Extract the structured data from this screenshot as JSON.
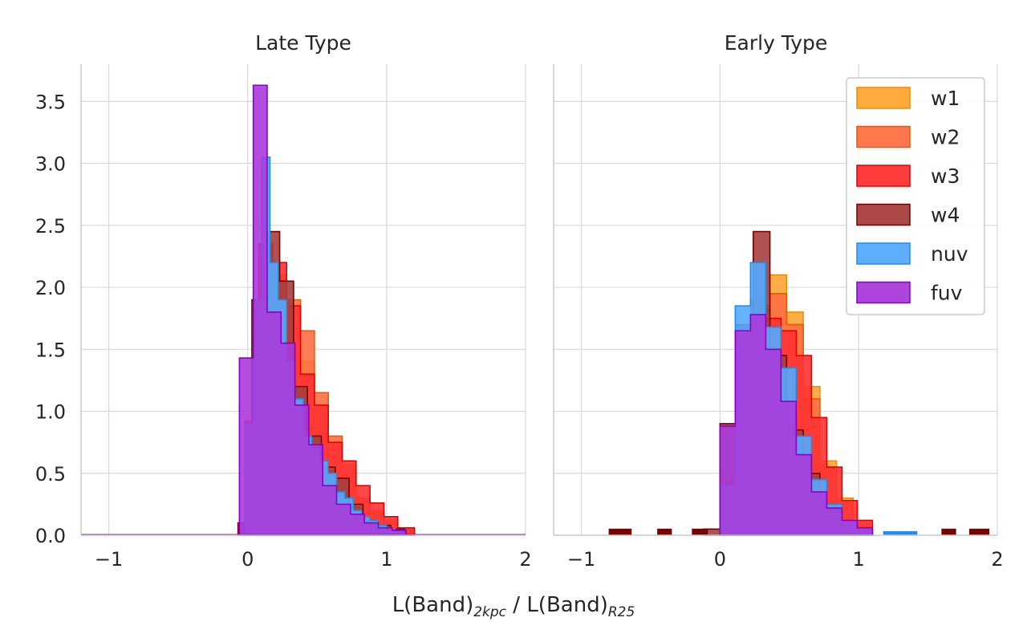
{
  "chart_data": {
    "type": "histogram",
    "xlabel": {
      "part1": "L(Band)",
      "sub1": "2kpc",
      "sep": " / L(Band)",
      "sub2": "R25"
    },
    "xlim": [
      -1.2,
      2.0
    ],
    "ylim": [
      0,
      3.8
    ],
    "x_ticks": [
      -1,
      0,
      1,
      2
    ],
    "x_tick_labels": [
      "−1",
      "0",
      "1",
      "2"
    ],
    "y_ticks": [
      0.0,
      0.5,
      1.0,
      1.5,
      2.0,
      2.5,
      3.0,
      3.5
    ],
    "y_tick_labels": [
      "0.0",
      "0.5",
      "1.0",
      "1.5",
      "2.0",
      "2.5",
      "3.0",
      "3.5"
    ],
    "grid": true,
    "legend": {
      "placement": "top-right",
      "panel": 1
    },
    "series_colors": {
      "w1": {
        "fill": "#FFA533",
        "edge": "#F28C00"
      },
      "w2": {
        "fill": "#FF7043",
        "edge": "#F25500"
      },
      "w3": {
        "fill": "#FF3333",
        "edge": "#E60000"
      },
      "w4": {
        "fill": "#A63F3F",
        "edge": "#7A0000"
      },
      "nuv": {
        "fill": "#54AAFF",
        "edge": "#1E8EEA"
      },
      "fuv": {
        "fill": "#A93BDB",
        "edge": "#8A00C8"
      }
    },
    "panels": [
      {
        "title": "Late Type",
        "series": [
          {
            "name": "w1",
            "edges": [
              -0.02,
              0.08,
              0.18,
              0.28,
              0.38,
              0.48,
              0.58,
              0.68,
              0.78,
              0.88,
              0.98,
              1.08,
              1.2
            ],
            "values": [
              0.9,
              2.2,
              2.1,
              1.8,
              1.4,
              1.0,
              0.55,
              0.4,
              0.28,
              0.2,
              0.12,
              0.05
            ]
          },
          {
            "name": "w2",
            "edges": [
              -0.02,
              0.08,
              0.18,
              0.28,
              0.38,
              0.48,
              0.58,
              0.68,
              0.78,
              0.88,
              0.98,
              1.08,
              1.2
            ],
            "values": [
              0.9,
              2.2,
              2.1,
              1.9,
              1.65,
              1.15,
              0.8,
              0.57,
              0.3,
              0.18,
              0.1,
              0.05
            ]
          },
          {
            "name": "w3",
            "edges": [
              -0.02,
              0.08,
              0.18,
              0.28,
              0.38,
              0.48,
              0.58,
              0.68,
              0.78,
              0.88,
              0.98,
              1.08,
              1.2
            ],
            "values": [
              0.92,
              2.35,
              2.2,
              1.85,
              1.3,
              1.05,
              0.75,
              0.6,
              0.4,
              0.26,
              0.15,
              0.06
            ]
          },
          {
            "name": "w4",
            "edges": [
              -0.07,
              0.03,
              0.13,
              0.23,
              0.33,
              0.43,
              0.53,
              0.63,
              0.73,
              0.83,
              0.93,
              1.03,
              1.13
            ],
            "values": [
              0.1,
              1.9,
              2.45,
              2.05,
              1.2,
              0.8,
              0.55,
              0.46,
              0.25,
              0.12,
              0.08,
              0.05
            ]
          },
          {
            "name": "nuv",
            "edges": [
              -0.02,
              0.04,
              0.1,
              0.16,
              0.22,
              0.28,
              0.34,
              0.4,
              0.46,
              0.52,
              0.58,
              0.64,
              0.7,
              0.76,
              0.82,
              0.88,
              0.94,
              1.0,
              1.06,
              1.12
            ],
            "values": [
              0.9,
              1.9,
              3.05,
              2.2,
              1.9,
              1.4,
              1.1,
              0.8,
              0.7,
              0.6,
              0.5,
              0.35,
              0.3,
              0.2,
              0.15,
              0.12,
              0.08,
              0.05,
              0.03
            ]
          },
          {
            "name": "fuv",
            "edges": [
              -0.06,
              0.04,
              0.14,
              0.24,
              0.34,
              0.44,
              0.54,
              0.64,
              0.74,
              0.84,
              0.94,
              1.04,
              1.14
            ],
            "values": [
              1.43,
              3.63,
              1.8,
              1.55,
              1.05,
              0.73,
              0.4,
              0.25,
              0.17,
              0.1,
              0.06,
              0.04
            ]
          }
        ]
      },
      {
        "title": "Early Type",
        "series": [
          {
            "name": "w1",
            "edges": [
              0.0,
              0.12,
              0.24,
              0.36,
              0.48,
              0.6,
              0.72,
              0.84,
              0.96,
              1.08
            ],
            "values": [
              0.35,
              1.55,
              1.8,
              2.1,
              1.8,
              1.2,
              0.6,
              0.3,
              0.1
            ]
          },
          {
            "name": "w2",
            "edges": [
              0.0,
              0.12,
              0.24,
              0.36,
              0.48,
              0.6,
              0.72,
              0.84,
              0.96,
              1.08
            ],
            "values": [
              0.4,
              1.6,
              1.85,
              1.95,
              1.7,
              1.1,
              0.55,
              0.25,
              0.1
            ]
          },
          {
            "name": "w3",
            "edges": [
              0.0,
              0.11,
              0.22,
              0.33,
              0.44,
              0.55,
              0.66,
              0.77,
              0.88,
              0.99,
              1.1
            ],
            "values": [
              0.45,
              1.4,
              1.9,
              1.75,
              1.65,
              1.45,
              0.95,
              0.55,
              0.28,
              0.12
            ]
          },
          {
            "name": "w4",
            "edges": [
              -0.12,
              0.0,
              0.12,
              0.24,
              0.36,
              0.48,
              0.6,
              0.72,
              0.84,
              0.96
            ],
            "values": [
              0.05,
              0.9,
              1.7,
              2.45,
              1.45,
              0.85,
              0.5,
              0.25,
              0.1
            ]
          },
          {
            "name": "nuv",
            "edges": [
              0.0,
              0.11,
              0.22,
              0.33,
              0.44,
              0.55,
              0.66,
              0.77,
              0.88,
              0.99,
              1.1
            ],
            "values": [
              0.4,
              1.85,
              2.2,
              1.68,
              1.35,
              0.8,
              0.45,
              0.25,
              0.12,
              0.05
            ]
          },
          {
            "name": "fuv",
            "edges": [
              0.0,
              0.11,
              0.22,
              0.33,
              0.44,
              0.55,
              0.66,
              0.77,
              0.88,
              0.99,
              1.1
            ],
            "values": [
              0.88,
              1.65,
              1.78,
              1.5,
              1.08,
              0.65,
              0.35,
              0.22,
              0.12,
              0.06
            ]
          }
        ],
        "outliers": [
          {
            "x0": -0.8,
            "x1": -0.64,
            "h": 0.05,
            "color": "#7A0000"
          },
          {
            "x0": -0.45,
            "x1": -0.35,
            "h": 0.05,
            "color": "#7A0000"
          },
          {
            "x0": -0.2,
            "x1": -0.09,
            "h": 0.05,
            "color": "#7A0000"
          },
          {
            "x0": 1.6,
            "x1": 1.7,
            "h": 0.05,
            "color": "#7A0000"
          },
          {
            "x0": 1.8,
            "x1": 1.94,
            "h": 0.05,
            "color": "#7A0000"
          },
          {
            "x0": 1.18,
            "x1": 1.42,
            "h": 0.03,
            "color": "#1E8EEA"
          }
        ]
      }
    ]
  }
}
